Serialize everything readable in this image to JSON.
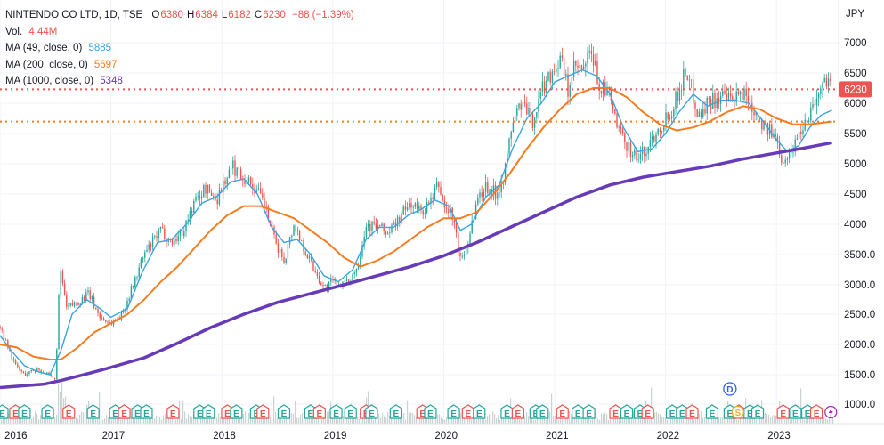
{
  "legend": {
    "title": "NINTENDO CO LTD, 1D, TSE",
    "ohlc": [
      {
        "label": "O",
        "value": "6380"
      },
      {
        "label": "H",
        "value": "6384"
      },
      {
        "label": "L",
        "value": "6182"
      },
      {
        "label": "C",
        "value": "6230"
      }
    ],
    "change": "−88 (−1.39%)",
    "volume_label": "Vol.",
    "volume_value": "4.44M",
    "ma": [
      {
        "label": "MA (49, close, 0)",
        "value": "5885",
        "color": "#3aa3e3"
      },
      {
        "label": "MA (200, close, 0)",
        "value": "5697",
        "color": "#f57c1f"
      },
      {
        "label": "MA (1000, close, 0)",
        "value": "5348",
        "color": "#673ab7"
      }
    ]
  },
  "colors": {
    "up": "#ef5350",
    "down": "#26a69a",
    "price_line": "#ef5350",
    "ma200_line": "#f57c1f",
    "volume_bar": "#b8c4c4",
    "volume_highlight": "#ef9a9a",
    "earnings_badge": "#ef5350",
    "earnings_badge_teal": "#26a69a",
    "dividend_badge": "#2962ff",
    "split_badge": "#f9a825",
    "flash_badge": "#9c27b0",
    "grid": "#f0f3fa",
    "axis_text": "#131722"
  },
  "chart_data": {
    "type": "candlestick",
    "currency": "JPY",
    "x_labels": [
      "2016",
      "2017",
      "2018",
      "2019",
      "2020",
      "2021",
      "2022",
      "2023"
    ],
    "y_ticks": [
      1000,
      1500,
      2000,
      2500,
      3000,
      3500,
      4000,
      4500,
      5000,
      5500,
      6000,
      6500,
      7000
    ],
    "y_tick_labels": [
      "1000.0",
      "1500.0",
      "2000.0",
      "2500.0",
      "3000.0",
      "3500.0",
      "4000",
      "4500",
      "5000",
      "5500",
      "6000",
      "6500",
      "7000"
    ],
    "ylim": [
      650,
      7500
    ],
    "xlim": [
      2016.0,
      2023.52
    ],
    "last_price": 6230,
    "last_price_label": "6230",
    "ma200_level": 5697,
    "price_path": [
      [
        2016.0,
        2300
      ],
      [
        2016.06,
        2000
      ],
      [
        2016.14,
        1650
      ],
      [
        2016.22,
        1500
      ],
      [
        2016.34,
        1600
      ],
      [
        2016.44,
        1480
      ],
      [
        2016.5,
        1400
      ],
      [
        2016.53,
        2800
      ],
      [
        2016.55,
        3200
      ],
      [
        2016.6,
        2600
      ],
      [
        2016.7,
        2700
      ],
      [
        2016.8,
        2850
      ],
      [
        2016.9,
        2450
      ],
      [
        2017.0,
        2350
      ],
      [
        2017.1,
        2500
      ],
      [
        2017.2,
        3000
      ],
      [
        2017.3,
        3500
      ],
      [
        2017.45,
        3900
      ],
      [
        2017.55,
        3700
      ],
      [
        2017.65,
        3900
      ],
      [
        2017.75,
        4350
      ],
      [
        2017.85,
        4600
      ],
      [
        2017.95,
        4400
      ],
      [
        2018.02,
        4700
      ],
      [
        2018.1,
        4950
      ],
      [
        2018.18,
        4800
      ],
      [
        2018.28,
        4650
      ],
      [
        2018.38,
        4350
      ],
      [
        2018.48,
        3700
      ],
      [
        2018.56,
        3400
      ],
      [
        2018.65,
        4000
      ],
      [
        2018.72,
        3700
      ],
      [
        2018.82,
        3300
      ],
      [
        2018.92,
        2950
      ],
      [
        2019.0,
        3050
      ],
      [
        2019.12,
        3000
      ],
      [
        2019.22,
        3300
      ],
      [
        2019.3,
        4000
      ],
      [
        2019.42,
        3950
      ],
      [
        2019.5,
        3850
      ],
      [
        2019.6,
        4100
      ],
      [
        2019.7,
        4350
      ],
      [
        2019.8,
        4200
      ],
      [
        2019.9,
        4400
      ],
      [
        2019.95,
        4700
      ],
      [
        2020.0,
        4300
      ],
      [
        2020.08,
        4150
      ],
      [
        2020.15,
        3400
      ],
      [
        2020.2,
        3600
      ],
      [
        2020.3,
        4400
      ],
      [
        2020.38,
        4650
      ],
      [
        2020.47,
        4500
      ],
      [
        2020.55,
        4850
      ],
      [
        2020.62,
        5700
      ],
      [
        2020.7,
        6000
      ],
      [
        2020.8,
        5700
      ],
      [
        2020.9,
        6300
      ],
      [
        2021.0,
        6600
      ],
      [
        2021.06,
        6700
      ],
      [
        2021.12,
        6200
      ],
      [
        2021.18,
        6600
      ],
      [
        2021.25,
        6500
      ],
      [
        2021.33,
        6850
      ],
      [
        2021.4,
        6300
      ],
      [
        2021.5,
        6100
      ],
      [
        2021.58,
        5500
      ],
      [
        2021.66,
        5300
      ],
      [
        2021.74,
        5100
      ],
      [
        2021.82,
        5200
      ],
      [
        2021.9,
        5500
      ],
      [
        2022.0,
        5750
      ],
      [
        2022.08,
        6000
      ],
      [
        2022.18,
        6550
      ],
      [
        2022.24,
        6200
      ],
      [
        2022.3,
        5800
      ],
      [
        2022.4,
        6050
      ],
      [
        2022.5,
        6100
      ],
      [
        2022.6,
        6000
      ],
      [
        2022.7,
        6200
      ],
      [
        2022.8,
        5900
      ],
      [
        2022.9,
        5600
      ],
      [
        2023.0,
        5400
      ],
      [
        2023.05,
        5100
      ],
      [
        2023.12,
        5150
      ],
      [
        2023.2,
        5500
      ],
      [
        2023.28,
        5800
      ],
      [
        2023.35,
        6050
      ],
      [
        2023.42,
        6300
      ],
      [
        2023.47,
        6500
      ],
      [
        2023.5,
        6230
      ]
    ],
    "series": [
      {
        "name": "MA (49, close, 0)",
        "color": "#3aa3e3",
        "points": [
          [
            2016.0,
            2150
          ],
          [
            2016.1,
            1900
          ],
          [
            2016.22,
            1650
          ],
          [
            2016.34,
            1550
          ],
          [
            2016.45,
            1500
          ],
          [
            2016.55,
            1900
          ],
          [
            2016.65,
            2500
          ],
          [
            2016.78,
            2750
          ],
          [
            2016.9,
            2600
          ],
          [
            2017.0,
            2450
          ],
          [
            2017.15,
            2600
          ],
          [
            2017.28,
            3200
          ],
          [
            2017.42,
            3700
          ],
          [
            2017.55,
            3750
          ],
          [
            2017.68,
            4000
          ],
          [
            2017.82,
            4350
          ],
          [
            2017.95,
            4450
          ],
          [
            2018.08,
            4700
          ],
          [
            2018.2,
            4750
          ],
          [
            2018.32,
            4500
          ],
          [
            2018.45,
            3950
          ],
          [
            2018.56,
            3700
          ],
          [
            2018.68,
            3750
          ],
          [
            2018.8,
            3500
          ],
          [
            2018.92,
            3150
          ],
          [
            2019.05,
            3050
          ],
          [
            2019.18,
            3250
          ],
          [
            2019.3,
            3750
          ],
          [
            2019.42,
            3950
          ],
          [
            2019.55,
            3950
          ],
          [
            2019.68,
            4150
          ],
          [
            2019.8,
            4250
          ],
          [
            2019.92,
            4400
          ],
          [
            2020.05,
            4300
          ],
          [
            2020.15,
            3900
          ],
          [
            2020.25,
            4000
          ],
          [
            2020.38,
            4450
          ],
          [
            2020.5,
            4650
          ],
          [
            2020.62,
            5250
          ],
          [
            2020.75,
            5750
          ],
          [
            2020.88,
            6000
          ],
          [
            2021.0,
            6350
          ],
          [
            2021.12,
            6450
          ],
          [
            2021.25,
            6550
          ],
          [
            2021.38,
            6450
          ],
          [
            2021.5,
            6150
          ],
          [
            2021.62,
            5600
          ],
          [
            2021.75,
            5200
          ],
          [
            2021.88,
            5250
          ],
          [
            2022.0,
            5500
          ],
          [
            2022.12,
            5850
          ],
          [
            2022.25,
            6150
          ],
          [
            2022.38,
            5950
          ],
          [
            2022.5,
            6050
          ],
          [
            2022.62,
            6050
          ],
          [
            2022.75,
            6000
          ],
          [
            2022.88,
            5700
          ],
          [
            2023.0,
            5400
          ],
          [
            2023.1,
            5200
          ],
          [
            2023.2,
            5300
          ],
          [
            2023.3,
            5600
          ],
          [
            2023.4,
            5800
          ],
          [
            2023.5,
            5885
          ]
        ]
      },
      {
        "name": "MA (200, close, 0)",
        "color": "#f57c1f",
        "points": [
          [
            2016.0,
            2000
          ],
          [
            2016.15,
            1950
          ],
          [
            2016.3,
            1800
          ],
          [
            2016.45,
            1750
          ],
          [
            2016.55,
            1750
          ],
          [
            2016.7,
            1950
          ],
          [
            2016.85,
            2200
          ],
          [
            2017.0,
            2350
          ],
          [
            2017.15,
            2500
          ],
          [
            2017.3,
            2750
          ],
          [
            2017.45,
            3050
          ],
          [
            2017.6,
            3300
          ],
          [
            2017.75,
            3600
          ],
          [
            2017.9,
            3900
          ],
          [
            2018.05,
            4150
          ],
          [
            2018.2,
            4300
          ],
          [
            2018.35,
            4300
          ],
          [
            2018.5,
            4200
          ],
          [
            2018.65,
            4100
          ],
          [
            2018.8,
            3900
          ],
          [
            2018.95,
            3700
          ],
          [
            2019.1,
            3450
          ],
          [
            2019.25,
            3300
          ],
          [
            2019.4,
            3400
          ],
          [
            2019.55,
            3550
          ],
          [
            2019.7,
            3750
          ],
          [
            2019.85,
            3950
          ],
          [
            2020.0,
            4100
          ],
          [
            2020.15,
            4100
          ],
          [
            2020.3,
            4200
          ],
          [
            2020.45,
            4500
          ],
          [
            2020.6,
            4850
          ],
          [
            2020.75,
            5250
          ],
          [
            2020.9,
            5600
          ],
          [
            2021.05,
            5900
          ],
          [
            2021.2,
            6150
          ],
          [
            2021.35,
            6250
          ],
          [
            2021.5,
            6250
          ],
          [
            2021.65,
            6100
          ],
          [
            2021.8,
            5850
          ],
          [
            2021.95,
            5650
          ],
          [
            2022.1,
            5550
          ],
          [
            2022.25,
            5600
          ],
          [
            2022.4,
            5700
          ],
          [
            2022.55,
            5850
          ],
          [
            2022.7,
            5950
          ],
          [
            2022.85,
            5900
          ],
          [
            2023.0,
            5750
          ],
          [
            2023.15,
            5650
          ],
          [
            2023.3,
            5650
          ],
          [
            2023.5,
            5697
          ]
        ]
      },
      {
        "name": "MA (1000, close, 0)",
        "color": "#673ab7",
        "points": [
          [
            2016.0,
            1280
          ],
          [
            2016.4,
            1340
          ],
          [
            2016.55,
            1400
          ],
          [
            2016.8,
            1520
          ],
          [
            2017.0,
            1620
          ],
          [
            2017.3,
            1780
          ],
          [
            2017.6,
            2020
          ],
          [
            2017.9,
            2280
          ],
          [
            2018.2,
            2500
          ],
          [
            2018.5,
            2700
          ],
          [
            2018.8,
            2850
          ],
          [
            2019.1,
            3000
          ],
          [
            2019.4,
            3150
          ],
          [
            2019.7,
            3300
          ],
          [
            2020.0,
            3480
          ],
          [
            2020.3,
            3700
          ],
          [
            2020.6,
            3950
          ],
          [
            2020.9,
            4200
          ],
          [
            2021.2,
            4450
          ],
          [
            2021.5,
            4650
          ],
          [
            2021.8,
            4780
          ],
          [
            2022.1,
            4870
          ],
          [
            2022.4,
            4960
          ],
          [
            2022.7,
            5080
          ],
          [
            2023.0,
            5180
          ],
          [
            2023.25,
            5260
          ],
          [
            2023.5,
            5348
          ]
        ]
      }
    ],
    "events": [
      {
        "t": 2016.02,
        "kind": "E"
      },
      {
        "t": 2016.14,
        "kind": "E"
      },
      {
        "t": 2016.22,
        "kind": "E"
      },
      {
        "t": 2016.43,
        "kind": "E"
      },
      {
        "t": 2016.62,
        "kind": "E"
      },
      {
        "t": 2016.84,
        "kind": "E"
      },
      {
        "t": 2017.04,
        "kind": "E"
      },
      {
        "t": 2017.12,
        "kind": "E"
      },
      {
        "t": 2017.24,
        "kind": "E"
      },
      {
        "t": 2017.32,
        "kind": "E"
      },
      {
        "t": 2017.56,
        "kind": "E"
      },
      {
        "t": 2017.8,
        "kind": "E"
      },
      {
        "t": 2017.88,
        "kind": "E"
      },
      {
        "t": 2018.05,
        "kind": "E"
      },
      {
        "t": 2018.13,
        "kind": "E"
      },
      {
        "t": 2018.31,
        "kind": "E"
      },
      {
        "t": 2018.37,
        "kind": "E"
      },
      {
        "t": 2018.56,
        "kind": "E"
      },
      {
        "t": 2018.8,
        "kind": "E"
      },
      {
        "t": 2018.88,
        "kind": "E"
      },
      {
        "t": 2019.03,
        "kind": "E"
      },
      {
        "t": 2019.16,
        "kind": "E"
      },
      {
        "t": 2019.3,
        "kind": "E"
      },
      {
        "t": 2019.35,
        "kind": "E"
      },
      {
        "t": 2019.57,
        "kind": "E"
      },
      {
        "t": 2019.81,
        "kind": "E"
      },
      {
        "t": 2019.88,
        "kind": "E"
      },
      {
        "t": 2020.09,
        "kind": "E"
      },
      {
        "t": 2020.22,
        "kind": "E"
      },
      {
        "t": 2020.32,
        "kind": "E"
      },
      {
        "t": 2020.57,
        "kind": "E"
      },
      {
        "t": 2020.67,
        "kind": "E"
      },
      {
        "t": 2020.83,
        "kind": "E"
      },
      {
        "t": 2020.89,
        "kind": "E"
      },
      {
        "t": 2021.07,
        "kind": "E"
      },
      {
        "t": 2021.21,
        "kind": "E"
      },
      {
        "t": 2021.31,
        "kind": "E"
      },
      {
        "t": 2021.55,
        "kind": "E"
      },
      {
        "t": 2021.65,
        "kind": "E"
      },
      {
        "t": 2021.77,
        "kind": "E"
      },
      {
        "t": 2021.84,
        "kind": "E"
      },
      {
        "t": 2022.06,
        "kind": "E"
      },
      {
        "t": 2022.15,
        "kind": "E"
      },
      {
        "t": 2022.24,
        "kind": "E"
      },
      {
        "t": 2022.42,
        "kind": "E"
      },
      {
        "t": 2022.58,
        "kind": "E"
      },
      {
        "t": 2022.66,
        "kind": "E"
      },
      {
        "t": 2022.76,
        "kind": "E"
      },
      {
        "t": 2022.83,
        "kind": "E"
      },
      {
        "t": 2023.06,
        "kind": "E"
      },
      {
        "t": 2023.17,
        "kind": "E"
      },
      {
        "t": 2023.28,
        "kind": "E"
      },
      {
        "t": 2023.36,
        "kind": "E"
      },
      {
        "t": 2023.49,
        "kind": "flash"
      }
    ],
    "dividend_marker": {
      "t": 2022.58,
      "kind": "D",
      "label": "D"
    },
    "split_marker": {
      "t": 2022.62,
      "kind": "S",
      "label": "S"
    }
  }
}
